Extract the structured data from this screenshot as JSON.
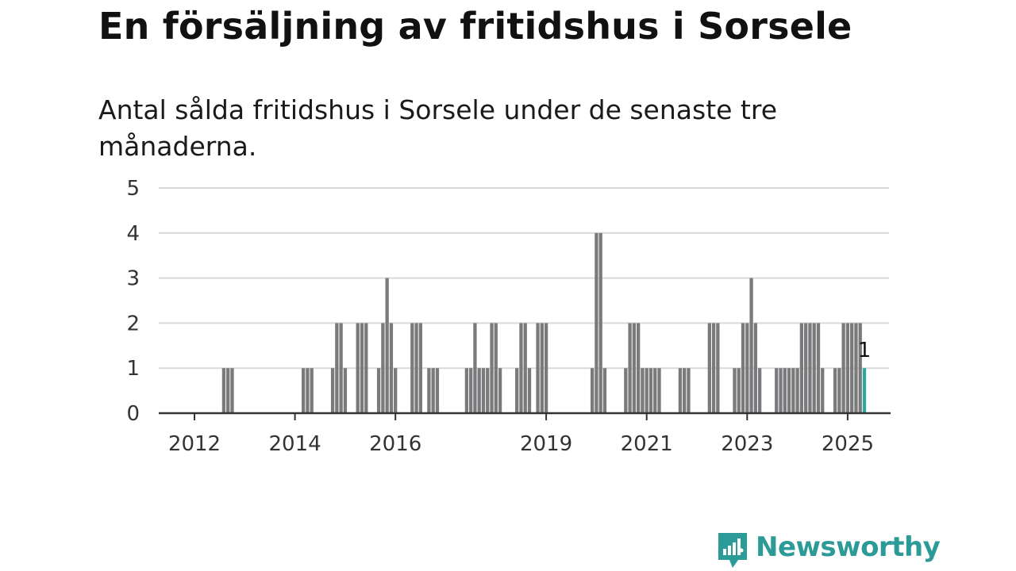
{
  "title": "En försäljning av fritidshus i Sorsele",
  "subtitle": "Antal sålda fritidshus i Sorsele under de senaste tre månaderna.",
  "brand": {
    "name": "Newsworthy",
    "icon": "newsworthy-logo-icon"
  },
  "colors": {
    "bar": "#7a7a7c",
    "highlight": "#2ca6a0",
    "grid": "#d9d9d9",
    "axis": "#333333",
    "brand": "#2c9a96"
  },
  "chart_data": {
    "type": "bar",
    "xlabel": "",
    "ylabel": "",
    "ylim": [
      0,
      5
    ],
    "yticks": [
      "0",
      "1",
      "2",
      "3",
      "4",
      "5"
    ],
    "xticks": [
      "2012",
      "2014",
      "2016",
      "2019",
      "2021",
      "2023",
      "2025"
    ],
    "grid": true,
    "series": [
      {
        "values": [
          {
            "x": "2012-08",
            "y": 1
          },
          {
            "x": "2012-09",
            "y": 1
          },
          {
            "x": "2012-10",
            "y": 1
          },
          {
            "x": "2014-03",
            "y": 1
          },
          {
            "x": "2014-04",
            "y": 1
          },
          {
            "x": "2014-05",
            "y": 1
          },
          {
            "x": "2014-10",
            "y": 1
          },
          {
            "x": "2014-11",
            "y": 2
          },
          {
            "x": "2014-12",
            "y": 2
          },
          {
            "x": "2015-01",
            "y": 1
          },
          {
            "x": "2015-04",
            "y": 2
          },
          {
            "x": "2015-05",
            "y": 2
          },
          {
            "x": "2015-06",
            "y": 2
          },
          {
            "x": "2015-09",
            "y": 1
          },
          {
            "x": "2015-10",
            "y": 2
          },
          {
            "x": "2015-11",
            "y": 3
          },
          {
            "x": "2015-12",
            "y": 2
          },
          {
            "x": "2016-01",
            "y": 1
          },
          {
            "x": "2016-05",
            "y": 2
          },
          {
            "x": "2016-06",
            "y": 2
          },
          {
            "x": "2016-07",
            "y": 2
          },
          {
            "x": "2016-09",
            "y": 1
          },
          {
            "x": "2016-10",
            "y": 1
          },
          {
            "x": "2016-11",
            "y": 1
          },
          {
            "x": "2017-06",
            "y": 1
          },
          {
            "x": "2017-07",
            "y": 1
          },
          {
            "x": "2017-08",
            "y": 2
          },
          {
            "x": "2017-09",
            "y": 1
          },
          {
            "x": "2017-10",
            "y": 1
          },
          {
            "x": "2017-11",
            "y": 1
          },
          {
            "x": "2017-12",
            "y": 2
          },
          {
            "x": "2018-01",
            "y": 2
          },
          {
            "x": "2018-02",
            "y": 1
          },
          {
            "x": "2018-06",
            "y": 1
          },
          {
            "x": "2018-07",
            "y": 2
          },
          {
            "x": "2018-08",
            "y": 2
          },
          {
            "x": "2018-09",
            "y": 1
          },
          {
            "x": "2018-11",
            "y": 2
          },
          {
            "x": "2018-12",
            "y": 2
          },
          {
            "x": "2019-01",
            "y": 2
          },
          {
            "x": "2019-12",
            "y": 1
          },
          {
            "x": "2020-01",
            "y": 4
          },
          {
            "x": "2020-02",
            "y": 4
          },
          {
            "x": "2020-03",
            "y": 1
          },
          {
            "x": "2020-08",
            "y": 1
          },
          {
            "x": "2020-09",
            "y": 2
          },
          {
            "x": "2020-10",
            "y": 2
          },
          {
            "x": "2020-11",
            "y": 2
          },
          {
            "x": "2020-12",
            "y": 1
          },
          {
            "x": "2021-01",
            "y": 1
          },
          {
            "x": "2021-02",
            "y": 1
          },
          {
            "x": "2021-03",
            "y": 1
          },
          {
            "x": "2021-04",
            "y": 1
          },
          {
            "x": "2021-09",
            "y": 1
          },
          {
            "x": "2021-10",
            "y": 1
          },
          {
            "x": "2021-11",
            "y": 1
          },
          {
            "x": "2022-04",
            "y": 2
          },
          {
            "x": "2022-05",
            "y": 2
          },
          {
            "x": "2022-06",
            "y": 2
          },
          {
            "x": "2022-10",
            "y": 1
          },
          {
            "x": "2022-11",
            "y": 1
          },
          {
            "x": "2022-12",
            "y": 2
          },
          {
            "x": "2023-01",
            "y": 2
          },
          {
            "x": "2023-02",
            "y": 3
          },
          {
            "x": "2023-03",
            "y": 2
          },
          {
            "x": "2023-04",
            "y": 1
          },
          {
            "x": "2023-08",
            "y": 1
          },
          {
            "x": "2023-09",
            "y": 1
          },
          {
            "x": "2023-10",
            "y": 1
          },
          {
            "x": "2023-11",
            "y": 1
          },
          {
            "x": "2023-12",
            "y": 1
          },
          {
            "x": "2024-01",
            "y": 1
          },
          {
            "x": "2024-02",
            "y": 2
          },
          {
            "x": "2024-03",
            "y": 2
          },
          {
            "x": "2024-04",
            "y": 2
          },
          {
            "x": "2024-05",
            "y": 2
          },
          {
            "x": "2024-06",
            "y": 2
          },
          {
            "x": "2024-07",
            "y": 1
          },
          {
            "x": "2024-10",
            "y": 1
          },
          {
            "x": "2024-11",
            "y": 1
          },
          {
            "x": "2024-12",
            "y": 2
          },
          {
            "x": "2025-01",
            "y": 2
          },
          {
            "x": "2025-02",
            "y": 2
          },
          {
            "x": "2025-03",
            "y": 2
          },
          {
            "x": "2025-04",
            "y": 2
          },
          {
            "x": "2025-05",
            "y": 1,
            "highlight": true
          }
        ]
      }
    ],
    "annotations": [
      {
        "x": "2025-05",
        "text": "1"
      }
    ]
  }
}
